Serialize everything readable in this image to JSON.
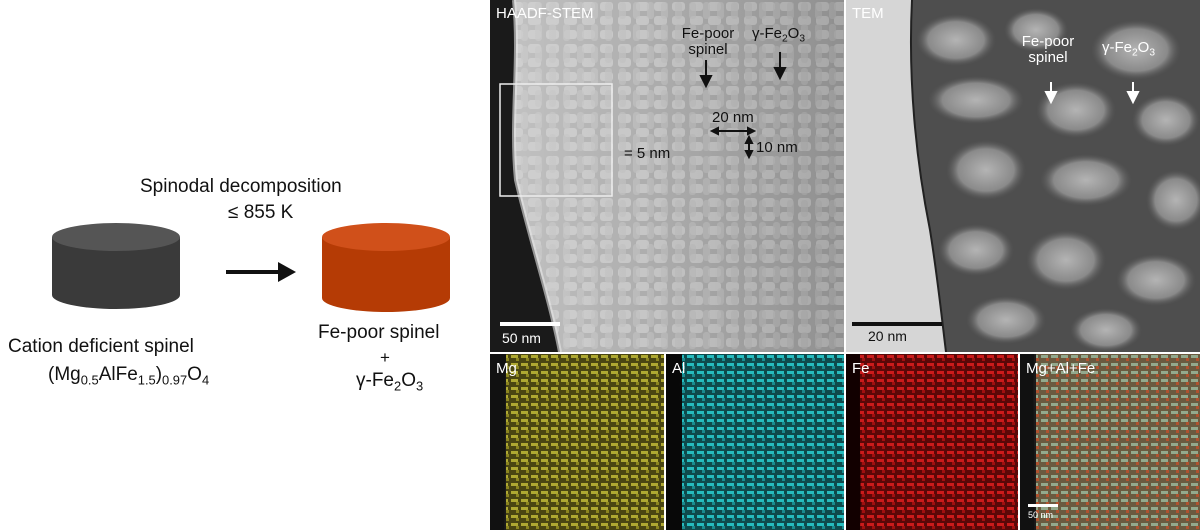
{
  "schematic": {
    "process_title": "Spinodal decomposition",
    "process_temp": "≤ 855 K",
    "left_name": "Cation deficient spinel",
    "left_formula": {
      "a": "(Mg",
      "s1": "0.5",
      "b": "AlFe",
      "s2": "1.5",
      "c": ")",
      "s3": "0.97",
      "d": "O",
      "s4": "4"
    },
    "right_name": "Fe-poor spinel",
    "plus": "+",
    "right_formula": {
      "a": "γ-Fe",
      "s1": "2",
      "b": "O",
      "s2": "3"
    },
    "colors": {
      "left_cylinder": "#3a3a3a",
      "right_cylinder": "#b53b05"
    }
  },
  "haadf": {
    "label": "HAADF-STEM",
    "anno_fepoor_1": "Fe-poor",
    "anno_fepoor_2": "spinel",
    "anno_gamma": {
      "a": "γ-Fe",
      "s1": "2",
      "b": "O",
      "s2": "3"
    },
    "dim_20": "20 nm",
    "dim_5": "= 5 nm",
    "dim_10": "10 nm",
    "scale": "50 nm"
  },
  "tem": {
    "label": "TEM",
    "anno_fepoor_1": "Fe-poor",
    "anno_fepoor_2": "spinel",
    "anno_gamma": {
      "a": "γ-Fe",
      "s1": "2",
      "b": "O",
      "s2": "3"
    },
    "scale": "20 nm"
  },
  "eds": {
    "maps": [
      {
        "label": "Mg",
        "color": "#c8c23a"
      },
      {
        "label": "Al",
        "color": "#2ad0d4"
      },
      {
        "label": "Fe",
        "color": "#e01e1e"
      },
      {
        "label": "Mg+Al+Fe",
        "color": "#9a9a70"
      }
    ],
    "scale": "50 nm"
  }
}
